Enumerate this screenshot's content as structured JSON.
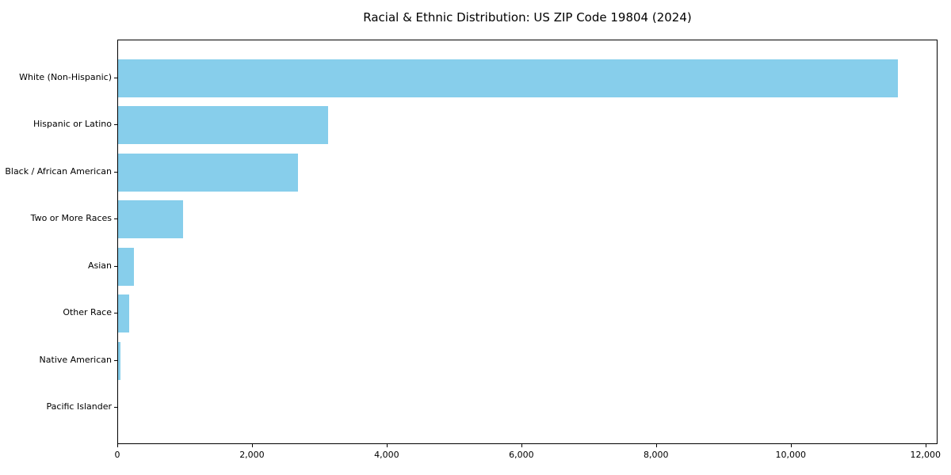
{
  "chart_data": {
    "type": "bar",
    "orientation": "horizontal",
    "title": "Racial & Ethnic Distribution: US ZIP Code 19804 (2024)",
    "categories": [
      "White (Non-Hispanic)",
      "Hispanic or Latino",
      "Black / African American",
      "Two or More Races",
      "Asian",
      "Other Race",
      "Native American",
      "Pacific Islander"
    ],
    "values": [
      11600,
      3120,
      2680,
      965,
      235,
      160,
      40,
      0
    ],
    "xlabel": "",
    "ylabel": "",
    "xlim": [
      0,
      12180
    ],
    "x_ticks": [
      0,
      2000,
      4000,
      6000,
      8000,
      10000,
      12000
    ],
    "x_tick_labels": [
      "0",
      "2,000",
      "4,000",
      "6,000",
      "8,000",
      "10,000",
      "12,000"
    ],
    "bar_color": "#87CEEB",
    "axis_color": "#000000",
    "text_color": "#000000",
    "background_color": "#ffffff",
    "grid": false,
    "legend": null
  }
}
